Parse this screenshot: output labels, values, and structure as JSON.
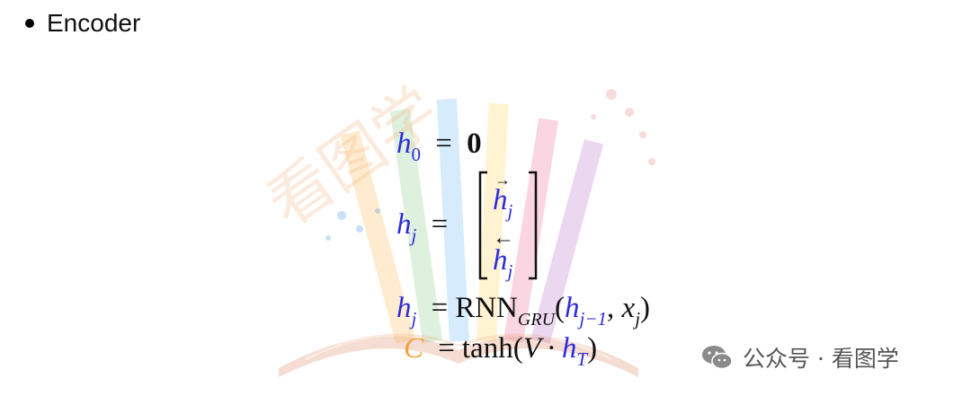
{
  "bullet": {
    "text": "Encoder"
  },
  "equations": {
    "eq1": {
      "lhs_var": "h",
      "lhs_sub": "0",
      "rhs": "0"
    },
    "eq2": {
      "lhs_var": "h",
      "lhs_sub": "j",
      "vec_top_var": "h",
      "vec_top_sub": "j",
      "vec_top_arrow": "→",
      "vec_bottom_var": "h",
      "vec_bottom_sub": "j",
      "vec_bottom_arrow": "←"
    },
    "eq3": {
      "lhs_var": "h",
      "lhs_sub": "j",
      "func": "RNN",
      "func_sub": "GRU",
      "arg1_var": "h",
      "arg1_sub": "j−1",
      "arg2_var": "x",
      "arg2_sub": "j"
    },
    "eq4": {
      "lhs_var": "C",
      "func": "tanh",
      "arg_var_V": "V",
      "arg_var": "h",
      "arg_sub": "T"
    }
  },
  "footer": {
    "brand_text": "公众号 · 看图学"
  },
  "watermark": {
    "text": "看图学"
  },
  "colors": {
    "blue": "#2c2cdc",
    "orange": "#f0a23a",
    "text": "#111111"
  }
}
